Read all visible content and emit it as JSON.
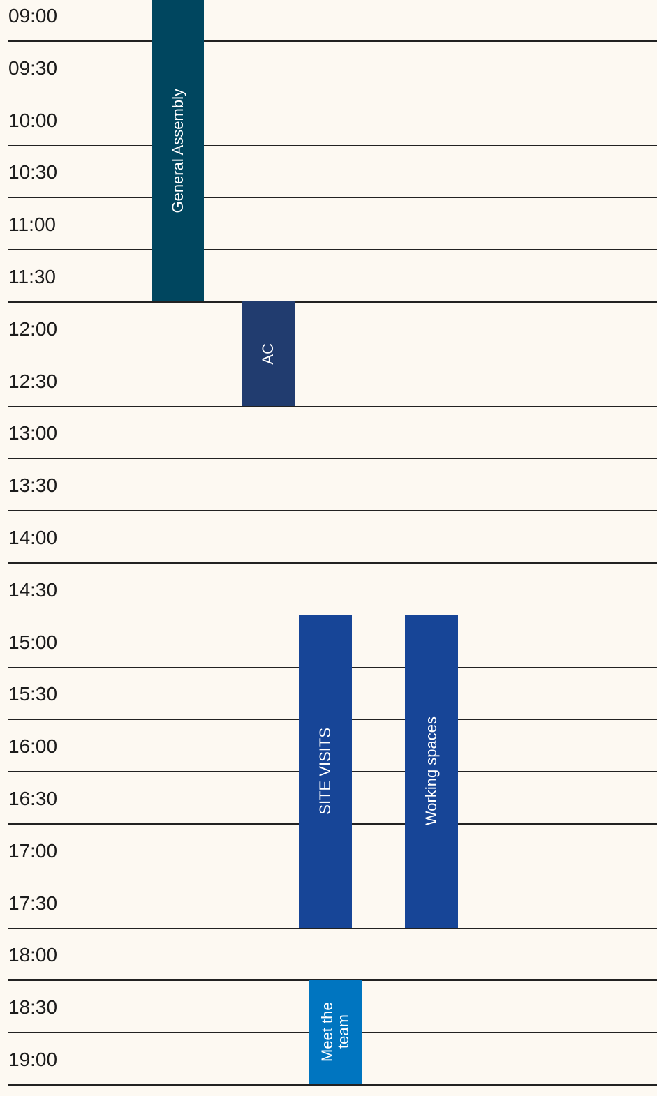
{
  "times": [
    "09:00",
    "09:30",
    "10:00",
    "10:30",
    "11:00",
    "11:30",
    "12:00",
    "12:30",
    "13:00",
    "13:30",
    "14:00",
    "14:30",
    "15:00",
    "15:30",
    "16:00",
    "16:30",
    "17:00",
    "17:30",
    "18:00",
    "18:30",
    "19:00"
  ],
  "events": [
    {
      "label": "General Assembly",
      "color": "#00465f",
      "start": "09:00",
      "end": "12:00"
    },
    {
      "label": "AC",
      "color": "#213c6f",
      "start": "12:00",
      "end": "13:00"
    },
    {
      "label": "SITE VISITS",
      "color": "#174597",
      "start": "15:00",
      "end": "18:00"
    },
    {
      "label": "Working spaces",
      "color": "#174597",
      "start": "15:00",
      "end": "18:00"
    },
    {
      "label": "Meet the team",
      "color": "#0075c0",
      "start": "18:30",
      "end": "19:30"
    }
  ]
}
